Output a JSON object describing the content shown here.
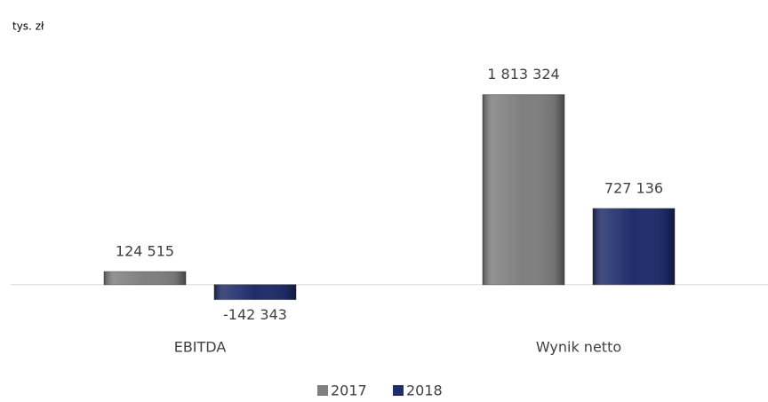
{
  "chart_data": {
    "type": "bar",
    "y_label": "tys. zł",
    "categories": [
      "EBITDA",
      "Wynik netto"
    ],
    "series": [
      {
        "name": "2017",
        "color": "#7f7f7f",
        "values": [
          124515,
          1813324
        ],
        "value_labels": [
          "124 515",
          "1 813 324"
        ]
      },
      {
        "name": "2018",
        "color": "#1f2d6b",
        "values": [
          -142343,
          727136
        ],
        "value_labels": [
          "-142 343",
          "727 136"
        ]
      }
    ],
    "ylim": [
      -400000,
      2200000
    ],
    "legend": "bottom"
  }
}
